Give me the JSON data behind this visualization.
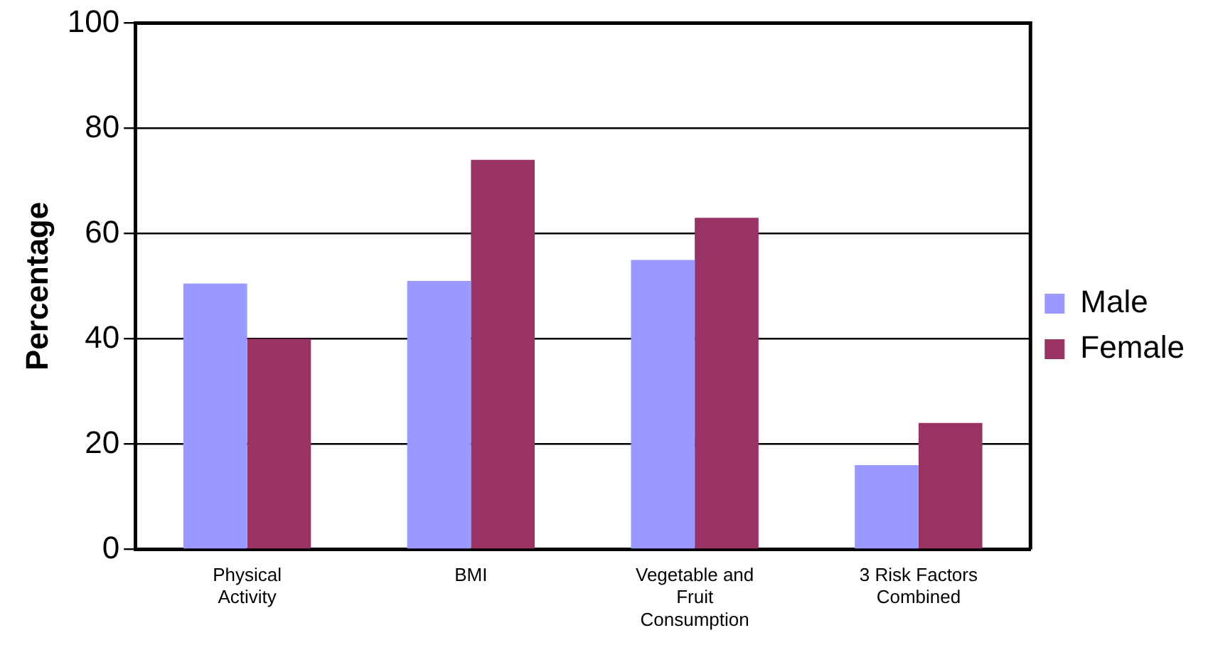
{
  "chart_data": {
    "type": "bar",
    "ylabel": "Percentage",
    "categories": [
      "Physical Activity",
      "BMI",
      "Vegetable and Fruit Consumption",
      "3 Risk Factors Combined"
    ],
    "series": [
      {
        "name": "Male",
        "color": "#9999ff",
        "values": [
          50.5,
          51,
          55,
          16
        ]
      },
      {
        "name": "Female",
        "color": "#993366",
        "values": [
          40,
          74,
          63,
          24
        ]
      }
    ],
    "ylim": [
      0,
      100
    ],
    "yticks": [
      0,
      20,
      40,
      60,
      80,
      100
    ],
    "grid": "y",
    "legend": "right"
  }
}
